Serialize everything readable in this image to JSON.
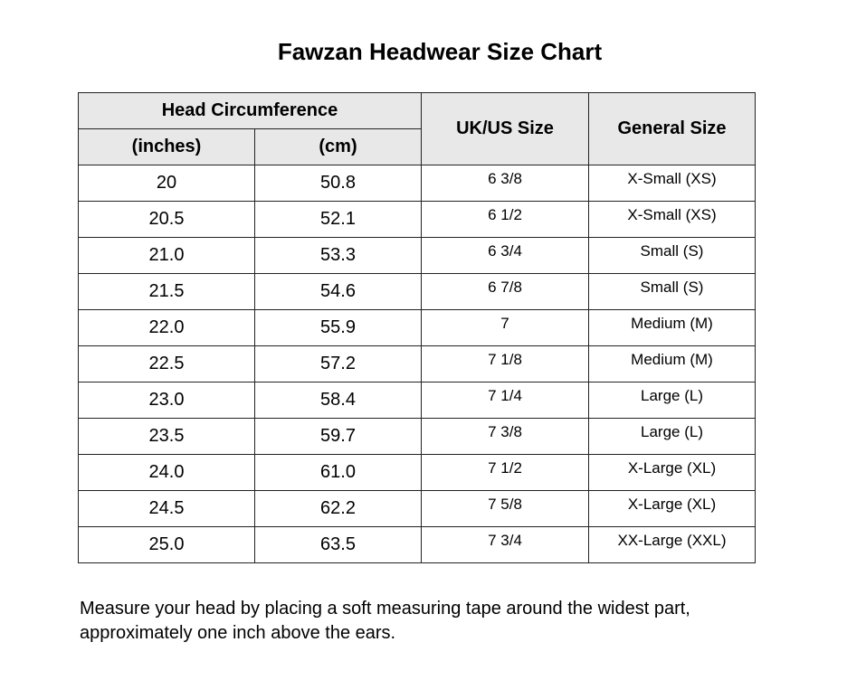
{
  "title": "Fawzan Headwear Size Chart",
  "headers": {
    "group": "Head Circumference",
    "inches": "(inches)",
    "cm": "(cm)",
    "ukus": "UK/US Size",
    "general": "General Size"
  },
  "rows": [
    {
      "inches": "20",
      "cm": "50.8",
      "ukus": "6 3/8",
      "general": "X-Small (XS)"
    },
    {
      "inches": "20.5",
      "cm": "52.1",
      "ukus": "6 1/2",
      "general": "X-Small (XS)"
    },
    {
      "inches": "21.0",
      "cm": "53.3",
      "ukus": "6 3/4",
      "general": "Small (S)"
    },
    {
      "inches": "21.5",
      "cm": "54.6",
      "ukus": "6 7/8",
      "general": "Small (S)"
    },
    {
      "inches": "22.0",
      "cm": "55.9",
      "ukus": "7",
      "general": "Medium (M)"
    },
    {
      "inches": "22.5",
      "cm": "57.2",
      "ukus": "7 1/8",
      "general": "Medium (M)"
    },
    {
      "inches": "23.0",
      "cm": "58.4",
      "ukus": "7 1/4",
      "general": "Large (L)"
    },
    {
      "inches": "23.5",
      "cm": "59.7",
      "ukus": "7 3/8",
      "general": "Large (L)"
    },
    {
      "inches": "24.0",
      "cm": "61.0",
      "ukus": "7 1/2",
      "general": "X-Large (XL)"
    },
    {
      "inches": "24.5",
      "cm": "62.2",
      "ukus": "7 5/8",
      "general": "X-Large (XL)"
    },
    {
      "inches": "25.0",
      "cm": "63.5",
      "ukus": "7 3/4",
      "general": "XX-Large (XXL)"
    }
  ],
  "note": "Measure your head by placing a soft measuring tape around the widest part, approximately one inch above the ears."
}
